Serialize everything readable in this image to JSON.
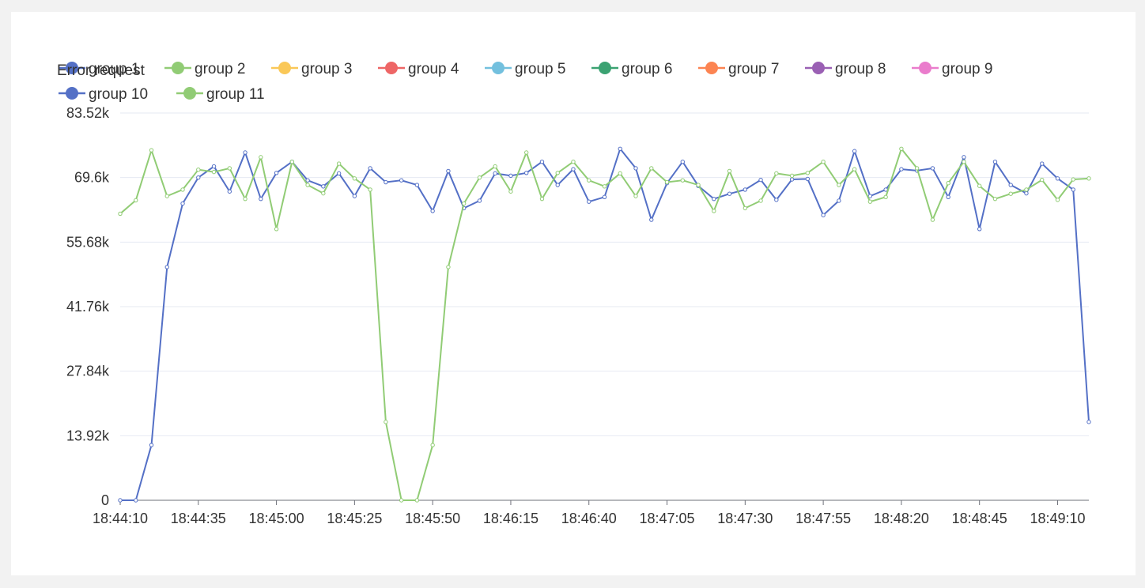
{
  "chart_data": {
    "type": "line",
    "title": "Error request",
    "xlabel": "",
    "ylabel": "",
    "ylim": [
      0,
      83520
    ],
    "y_ticks": [
      "0",
      "13.92k",
      "27.84k",
      "41.76k",
      "55.68k",
      "69.6k",
      "83.52k"
    ],
    "x_tick_labels": [
      "18:44:10",
      "18:44:35",
      "18:45:00",
      "18:45:25",
      "18:45:50",
      "18:46:15",
      "18:46:40",
      "18:47:05",
      "18:47:30",
      "18:47:55",
      "18:48:20",
      "18:48:45",
      "18:49:10"
    ],
    "x_start": "18:44:10",
    "x_step_seconds": 5,
    "grid": true,
    "legend_position": "top-left",
    "legend": [
      {
        "name": "group 1",
        "color": "#5470c6"
      },
      {
        "name": "group 2",
        "color": "#91cc75"
      },
      {
        "name": "group 3",
        "color": "#fac858"
      },
      {
        "name": "group 4",
        "color": "#ee6666"
      },
      {
        "name": "group 5",
        "color": "#73c0de"
      },
      {
        "name": "group 6",
        "color": "#3ba272"
      },
      {
        "name": "group 7",
        "color": "#fc8452"
      },
      {
        "name": "group 8",
        "color": "#9a60b4"
      },
      {
        "name": "group 9",
        "color": "#ea7ccc"
      },
      {
        "name": "group 10",
        "color": "#5470c6"
      },
      {
        "name": "group 11",
        "color": "#91cc75"
      }
    ],
    "series": [
      {
        "name": "group 10",
        "color": "#5470c6",
        "values": [
          0,
          0,
          11900,
          50300,
          64000,
          69600,
          72000,
          66600,
          75000,
          65000,
          70600,
          73000,
          69000,
          67700,
          70500,
          65600,
          71600,
          68600,
          69000,
          68000,
          62400,
          71000,
          63000,
          64600,
          70500,
          70000,
          70600,
          73000,
          68000,
          71400,
          64400,
          65400,
          75800,
          71600,
          60500,
          68400,
          73000,
          67800,
          65000,
          66100,
          67000,
          69100,
          64800,
          69200,
          69300,
          61500,
          64600,
          75300,
          65600,
          67000,
          71400,
          71100,
          71600,
          65400,
          74000,
          58500,
          73000,
          68000,
          66200,
          72600,
          69400,
          67000,
          16900
        ]
      },
      {
        "name": "group 11",
        "color": "#91cc75",
        "values": [
          61800,
          64700,
          75500,
          65600,
          67000,
          71300,
          70800,
          71600,
          65000,
          74000,
          58500,
          73000,
          68000,
          66200,
          72600,
          69400,
          67000,
          16900,
          0,
          0,
          11900,
          50300,
          64000,
          69600,
          72000,
          66600,
          75000,
          65000,
          70600,
          73000,
          69000,
          67700,
          70500,
          65600,
          71600,
          68600,
          69000,
          68000,
          62400,
          71000,
          63000,
          64600,
          70500,
          70000,
          70600,
          73000,
          68000,
          71400,
          64400,
          65400,
          75800,
          71600,
          60500,
          68400,
          73000,
          67800,
          65000,
          66100,
          67000,
          69100,
          64800,
          69200,
          69400
        ]
      }
    ]
  }
}
